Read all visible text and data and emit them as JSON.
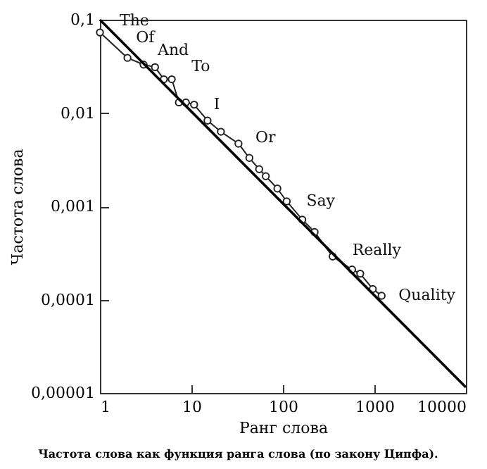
{
  "chart_data": {
    "type": "line",
    "xlabel": "Ранг слова",
    "ylabel": "Частота слова",
    "log": "xy",
    "marker": "circle",
    "grid": false,
    "xlim": [
      1,
      10000
    ],
    "xticks": [
      1,
      10,
      100,
      1000,
      10000
    ],
    "ylim": [
      1e-05,
      0.1
    ],
    "yticks": [
      {
        "value": 1e-05,
        "label": "0,00001"
      },
      {
        "value": 0.0001,
        "label": "0,0001"
      },
      {
        "value": 0.001,
        "label": "0,001"
      },
      {
        "value": 0.01,
        "label": "0,01"
      },
      {
        "value": 0.1,
        "label": "0,1"
      }
    ],
    "series": [
      {
        "color": "#222222",
        "x": [
          1,
          2,
          3,
          4,
          5,
          6.1,
          7.3,
          8.7,
          10.7,
          15,
          21,
          32.7,
          43,
          55,
          65,
          87,
          110,
          163,
          222,
          350,
          570,
          700,
          960,
          1200
        ],
        "values": [
          0.073,
          0.039,
          0.033,
          0.031,
          0.023,
          0.023,
          0.013,
          0.013,
          0.0123,
          0.0083,
          0.0063,
          0.0047,
          0.0033,
          0.0025,
          0.0021,
          0.00155,
          0.00113,
          0.00072,
          0.00053,
          0.00029,
          0.00021,
          0.00019,
          0.00013,
          0.00011
        ]
      },
      {
        "color": "#000000",
        "marker": "none",
        "x": [
          1,
          10000
        ],
        "values": [
          0.1,
          1.15e-05
        ]
      }
    ],
    "annotations": [
      {
        "text": "The",
        "x": 1,
        "y": 0.073
      },
      {
        "text": "Of",
        "x": 2,
        "y": 0.039
      },
      {
        "text": "And",
        "x": 3,
        "y": 0.033
      },
      {
        "text": "To",
        "x": 4,
        "y": 0.031
      },
      {
        "text": "I",
        "x": 10.7,
        "y": 0.0123
      },
      {
        "text": "Or",
        "x": 32.7,
        "y": 0.0047
      },
      {
        "text": "Say",
        "x": 110,
        "y": 0.00113
      },
      {
        "text": "Really",
        "x": 350,
        "y": 0.00029
      },
      {
        "text": "Quality",
        "x": 1200,
        "y": 0.00011
      },
      "Частота слова как функция ранга слова (по закону Ципфа)."
    ]
  }
}
